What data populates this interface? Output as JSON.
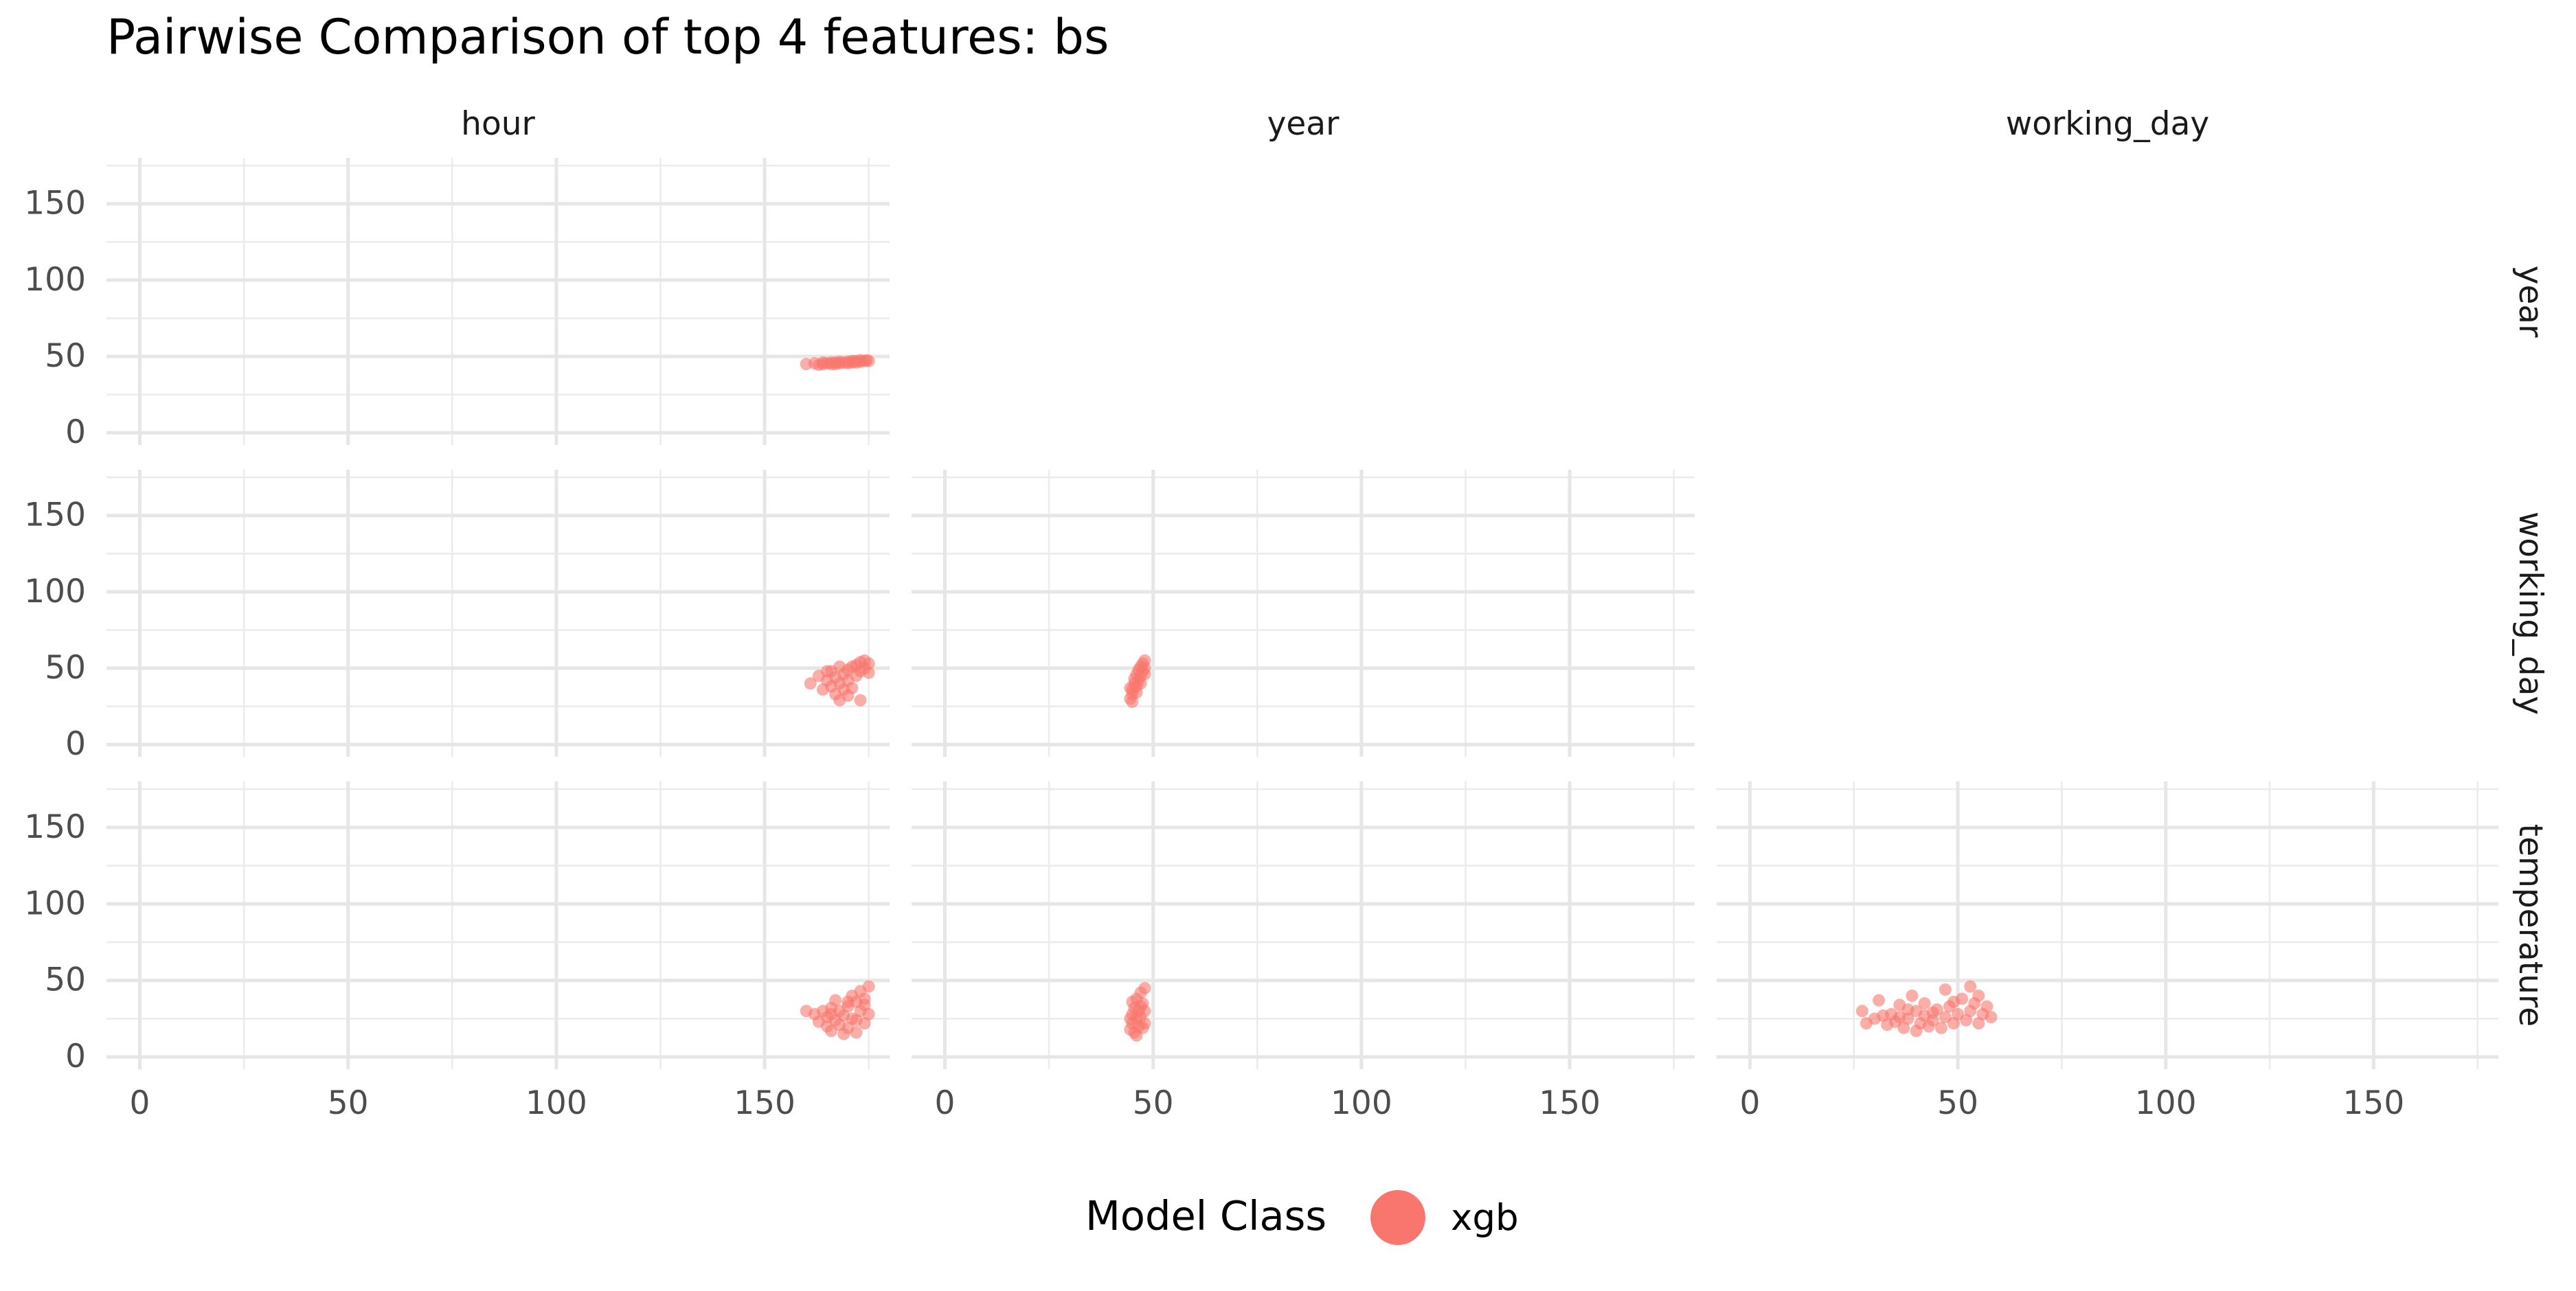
{
  "chart_data": {
    "type": "scatter",
    "title": "Pairwise Comparison of top 4 features: bs",
    "xlabel": "",
    "ylabel": "",
    "col_strips": [
      "hour",
      "year",
      "working_day"
    ],
    "row_strips": [
      "year",
      "working_day",
      "temperature"
    ],
    "xlim": [
      -8,
      180
    ],
    "ylim": [
      -8,
      180
    ],
    "x_ticks": [
      0,
      50,
      100,
      150
    ],
    "y_ticks": [
      0,
      50,
      100,
      150
    ],
    "x_tick_labels": [
      "0",
      "50",
      "100",
      "150"
    ],
    "y_tick_labels": [
      "0",
      "50",
      "100",
      "150"
    ],
    "grid": true,
    "legend": {
      "title": "Model Class",
      "position": "bottom",
      "entries": [
        {
          "label": "xgb",
          "color": "#F8766D"
        }
      ]
    },
    "point_color": "#F8766D",
    "panels": [
      {
        "row": 0,
        "col": 0,
        "x_feature": "hour",
        "y_feature": "year",
        "points": [
          [
            160,
            45
          ],
          [
            162,
            45.5
          ],
          [
            163,
            44.5
          ],
          [
            164,
            45
          ],
          [
            165,
            45.5
          ],
          [
            166,
            45
          ],
          [
            167,
            46
          ],
          [
            168,
            45.5
          ],
          [
            169,
            46
          ],
          [
            170,
            46.5
          ],
          [
            171,
            46
          ],
          [
            172,
            47
          ],
          [
            173,
            46.5
          ],
          [
            174,
            47
          ],
          [
            174.5,
            47.5
          ],
          [
            173,
            47.5
          ],
          [
            171,
            47
          ],
          [
            168,
            46.5
          ],
          [
            166,
            46
          ],
          [
            164,
            46
          ],
          [
            170,
            45.5
          ],
          [
            172,
            46
          ],
          [
            175,
            47
          ],
          [
            167,
            45
          ]
        ]
      },
      {
        "row": 1,
        "col": 0,
        "x_feature": "hour",
        "y_feature": "working_day",
        "points": [
          [
            161,
            40
          ],
          [
            163,
            45
          ],
          [
            164,
            36
          ],
          [
            165,
            42
          ],
          [
            166,
            38
          ],
          [
            166,
            48
          ],
          [
            167,
            33
          ],
          [
            167,
            44
          ],
          [
            168,
            29
          ],
          [
            168,
            40
          ],
          [
            169,
            46
          ],
          [
            169,
            36
          ],
          [
            170,
            49
          ],
          [
            170,
            42
          ],
          [
            171,
            51
          ],
          [
            171,
            37
          ],
          [
            172,
            52
          ],
          [
            172,
            45
          ],
          [
            173,
            54
          ],
          [
            173,
            48
          ],
          [
            174,
            55
          ],
          [
            174,
            50
          ],
          [
            175,
            53
          ],
          [
            173,
            29
          ],
          [
            170,
            32
          ],
          [
            165,
            48
          ],
          [
            168,
            51
          ],
          [
            175,
            47
          ]
        ]
      },
      {
        "row": 1,
        "col": 1,
        "x_feature": "year",
        "y_feature": "working_day",
        "points": [
          [
            44.5,
            30
          ],
          [
            45,
            33
          ],
          [
            45,
            36
          ],
          [
            45.5,
            40
          ],
          [
            45.5,
            43
          ],
          [
            46,
            38
          ],
          [
            46,
            46
          ],
          [
            46.5,
            42
          ],
          [
            46.5,
            49
          ],
          [
            47,
            45
          ],
          [
            47,
            51
          ],
          [
            47.5,
            48
          ],
          [
            47.5,
            53
          ],
          [
            48,
            50
          ],
          [
            48,
            55
          ],
          [
            45,
            28
          ],
          [
            46,
            34
          ],
          [
            47,
            40
          ],
          [
            48,
            46
          ],
          [
            44.5,
            37
          ]
        ]
      },
      {
        "row": 2,
        "col": 0,
        "x_feature": "hour",
        "y_feature": "temperature",
        "points": [
          [
            160,
            30
          ],
          [
            162,
            28
          ],
          [
            163,
            23
          ],
          [
            164,
            30
          ],
          [
            165,
            20
          ],
          [
            165,
            26
          ],
          [
            166,
            32
          ],
          [
            166,
            17
          ],
          [
            167,
            24
          ],
          [
            167,
            37
          ],
          [
            168,
            21
          ],
          [
            168,
            30
          ],
          [
            169,
            15
          ],
          [
            169,
            27
          ],
          [
            170,
            33
          ],
          [
            170,
            19
          ],
          [
            171,
            40
          ],
          [
            171,
            25
          ],
          [
            172,
            36
          ],
          [
            172,
            16
          ],
          [
            173,
            30
          ],
          [
            173,
            43
          ],
          [
            174,
            22
          ],
          [
            174,
            38
          ],
          [
            175,
            46
          ],
          [
            175,
            28
          ],
          [
            174,
            34
          ],
          [
            170,
            36
          ],
          [
            172,
            24
          ],
          [
            166,
            28
          ]
        ]
      },
      {
        "row": 2,
        "col": 1,
        "x_feature": "year",
        "y_feature": "temperature",
        "points": [
          [
            44.5,
            18
          ],
          [
            45,
            22
          ],
          [
            45,
            28
          ],
          [
            45.5,
            16
          ],
          [
            45.5,
            32
          ],
          [
            46,
            25
          ],
          [
            46,
            38
          ],
          [
            46.5,
            20
          ],
          [
            46.5,
            30
          ],
          [
            47,
            42
          ],
          [
            47,
            26
          ],
          [
            47.5,
            35
          ],
          [
            47.5,
            19
          ],
          [
            48,
            30
          ],
          [
            48,
            45
          ],
          [
            45,
            36
          ],
          [
            46,
            14
          ],
          [
            47,
            33
          ],
          [
            44.5,
            25
          ],
          [
            48,
            22
          ]
        ]
      },
      {
        "row": 2,
        "col": 2,
        "x_feature": "working_day",
        "y_feature": "temperature",
        "points": [
          [
            27,
            30
          ],
          [
            28,
            22
          ],
          [
            30,
            25
          ],
          [
            31,
            37
          ],
          [
            33,
            21
          ],
          [
            34,
            28
          ],
          [
            35,
            23
          ],
          [
            36,
            34
          ],
          [
            37,
            19
          ],
          [
            38,
            25
          ],
          [
            39,
            40
          ],
          [
            40,
            30
          ],
          [
            40,
            17
          ],
          [
            41,
            22
          ],
          [
            42,
            35
          ],
          [
            42,
            27
          ],
          [
            43,
            20
          ],
          [
            44,
            24
          ],
          [
            45,
            31
          ],
          [
            46,
            19
          ],
          [
            47,
            44
          ],
          [
            47,
            26
          ],
          [
            48,
            33
          ],
          [
            49,
            22
          ],
          [
            50,
            28
          ],
          [
            51,
            38
          ],
          [
            52,
            24
          ],
          [
            53,
            46
          ],
          [
            53,
            30
          ],
          [
            54,
            35
          ],
          [
            55,
            22
          ],
          [
            56,
            28
          ],
          [
            57,
            33
          ],
          [
            58,
            26
          ],
          [
            36,
            26
          ],
          [
            38,
            31
          ],
          [
            44,
            29
          ],
          [
            49,
            36
          ],
          [
            32,
            27
          ],
          [
            55,
            40
          ]
        ]
      }
    ]
  }
}
